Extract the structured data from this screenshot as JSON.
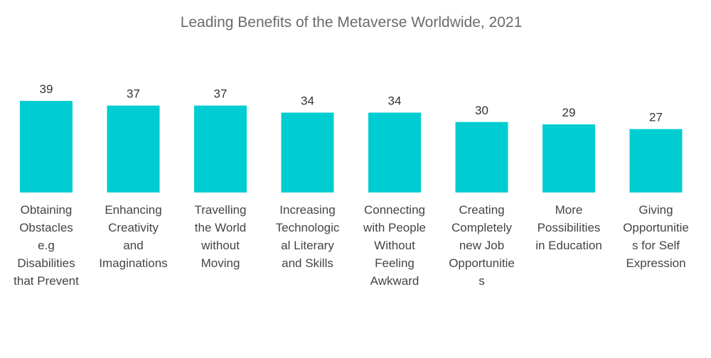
{
  "chart_data": {
    "type": "bar",
    "title": "Leading Benefits of the Metaverse Worldwide, 2021",
    "xlabel": "",
    "ylabel": "",
    "ylim": [
      0,
      39
    ],
    "bar_color": "#00cdd1",
    "categories": [
      "Obtaining Obstacles e.g Disabilities that Prevent",
      "Enhancing Creativity and Imaginations",
      "Travelling the World without Moving",
      "Increasing Technological Literary and Skills",
      "Connecting with People Without Feeling Awkward",
      "Creating Completely new Job Opportunities",
      "More Possibilities in Education",
      "Giving Opportunities for Self Expression"
    ],
    "category_label_lines": [
      [
        "Obtaining",
        "Obstacles",
        "e.g",
        "Disabilities",
        "that Prevent"
      ],
      [
        "Enhancing",
        "Creativity",
        "and",
        "Imaginations"
      ],
      [
        "Travelling",
        "the World",
        "without",
        "Moving"
      ],
      [
        "Increasing",
        "Technologic",
        "al Literary",
        "and Skills"
      ],
      [
        "Connecting",
        "with People",
        "Without",
        "Feeling",
        "Awkward"
      ],
      [
        "Creating",
        "Completely",
        "new Job",
        "Opportunitie",
        "s"
      ],
      [
        "More",
        "Possibilities",
        "in Education"
      ],
      [
        "Giving",
        "Opportunitie",
        "s for Self",
        "Expression"
      ]
    ],
    "values": [
      39,
      37,
      37,
      34,
      34,
      30,
      29,
      27
    ]
  }
}
